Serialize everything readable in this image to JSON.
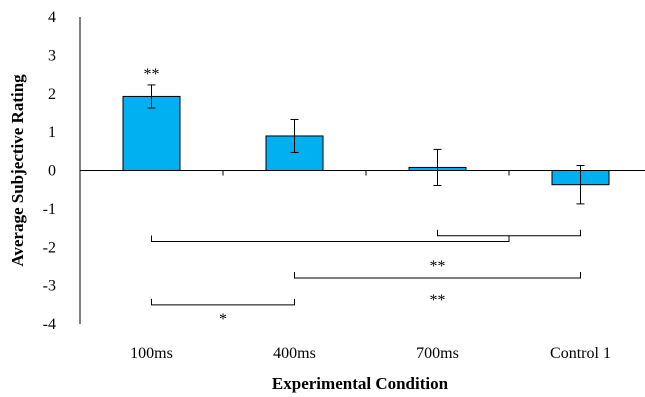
{
  "chart_data": {
    "type": "bar",
    "xlabel": "Experimental Condition",
    "ylabel": "Average Subjective Rating",
    "ylim": [
      -4,
      4
    ],
    "yticks": [
      4,
      3,
      2,
      1,
      0,
      -1,
      -2,
      -3,
      -4
    ],
    "categories": [
      "100ms",
      "400ms",
      "700ms",
      "Control 1"
    ],
    "values": [
      1.93,
      0.9,
      0.08,
      -0.37
    ],
    "errors": [
      0.3,
      0.43,
      0.47,
      0.5
    ],
    "bar_color": "#00b0f0",
    "bar_annotations": [
      {
        "category_index": 0,
        "label": "**"
      }
    ],
    "significance_brackets": [
      {
        "from": 0,
        "to": 2.5,
        "y": -1.85,
        "label": ""
      },
      {
        "from": 2,
        "to": 3,
        "y": -1.7,
        "label": ""
      },
      {
        "from": 1,
        "to": 3,
        "y": -2.8,
        "label": "**"
      },
      {
        "from": 0,
        "to": 1,
        "y": -3.5,
        "label": "*"
      },
      {
        "from": 1,
        "to": 3,
        "y": -2.8,
        "label": "**"
      }
    ],
    "grid": false,
    "legend": "none"
  }
}
